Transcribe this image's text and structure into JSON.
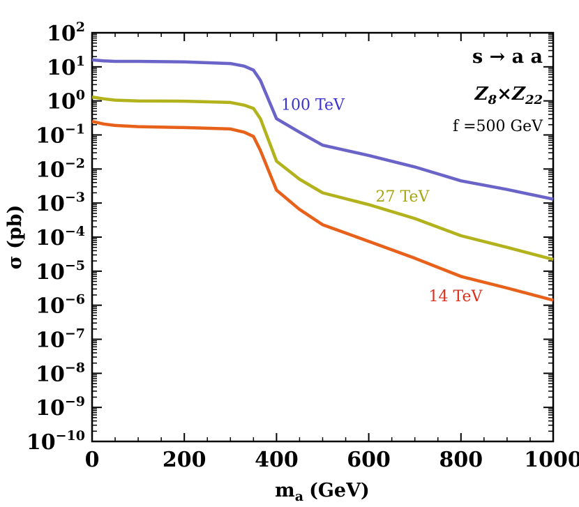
{
  "chart_data": {
    "type": "line",
    "title": "",
    "xlabel": "m",
    "xlabel_sub": "a",
    "xlabel_unit": "(GeV)",
    "ylabel": "σ (pb)",
    "xlim": [
      0,
      1000
    ],
    "ylim_log10": [
      -10,
      2
    ],
    "yscale": "log",
    "x_ticks": [
      0,
      200,
      400,
      600,
      800,
      1000
    ],
    "x_tick_labels": [
      "0",
      "200",
      "400",
      "600",
      "800",
      "1000"
    ],
    "y_ticks": [
      {
        "base": "10",
        "exp": "2"
      },
      {
        "base": "10",
        "exp": "1"
      },
      {
        "base": "10",
        "exp": "0"
      },
      {
        "base": "10",
        "exp": "−1"
      },
      {
        "base": "10",
        "exp": "−2"
      },
      {
        "base": "10",
        "exp": "−3"
      },
      {
        "base": "10",
        "exp": "−4"
      },
      {
        "base": "10",
        "exp": "−5"
      },
      {
        "base": "10",
        "exp": "−6"
      },
      {
        "base": "10",
        "exp": "−7"
      },
      {
        "base": "10",
        "exp": "−8"
      },
      {
        "base": "10",
        "exp": "−9"
      },
      {
        "base": "10",
        "exp": "−10"
      }
    ],
    "grid": false,
    "series": [
      {
        "name": "100 TeV",
        "color": "#6b64c8",
        "label_color": "#3a32d0",
        "points": [
          [
            0,
            16
          ],
          [
            25,
            15
          ],
          [
            50,
            14.5
          ],
          [
            100,
            14.5
          ],
          [
            200,
            14
          ],
          [
            300,
            12.5
          ],
          [
            330,
            10.5
          ],
          [
            350,
            8
          ],
          [
            365,
            4
          ],
          [
            400,
            0.3
          ],
          [
            450,
            0.12
          ],
          [
            500,
            0.05
          ],
          [
            600,
            0.025
          ],
          [
            700,
            0.0115
          ],
          [
            800,
            0.0045
          ],
          [
            900,
            0.0025
          ],
          [
            1000,
            0.0013
          ]
        ]
      },
      {
        "name": "27 TeV",
        "color": "#b2b31c",
        "label_color": "#a5a514",
        "points": [
          [
            0,
            1.3
          ],
          [
            25,
            1.15
          ],
          [
            50,
            1.05
          ],
          [
            100,
            1.0
          ],
          [
            200,
            0.98
          ],
          [
            300,
            0.9
          ],
          [
            330,
            0.75
          ],
          [
            350,
            0.6
          ],
          [
            365,
            0.3
          ],
          [
            400,
            0.017
          ],
          [
            450,
            0.005
          ],
          [
            500,
            0.002
          ],
          [
            600,
            0.0009
          ],
          [
            700,
            0.00035
          ],
          [
            800,
            0.00011
          ],
          [
            900,
            5e-05
          ],
          [
            1000,
            2.2e-05
          ]
        ]
      },
      {
        "name": "14 TeV",
        "color": "#e8611a",
        "label_color": "#d92e1a",
        "points": [
          [
            0,
            0.25
          ],
          [
            25,
            0.21
          ],
          [
            50,
            0.19
          ],
          [
            100,
            0.175
          ],
          [
            200,
            0.165
          ],
          [
            300,
            0.15
          ],
          [
            330,
            0.12
          ],
          [
            350,
            0.09
          ],
          [
            365,
            0.035
          ],
          [
            400,
            0.0024
          ],
          [
            450,
            0.00065
          ],
          [
            500,
            0.00023
          ],
          [
            600,
            7.5e-05
          ],
          [
            700,
            2.4e-05
          ],
          [
            800,
            7e-06
          ],
          [
            900,
            3.2e-06
          ],
          [
            1000,
            1.4e-06
          ]
        ]
      }
    ],
    "series_label_anchors": {
      "100 TeV": {
        "x": 410,
        "y": 0.55
      },
      "27 TeV": {
        "x": 615,
        "y": 0.0011
      },
      "14 TeV": {
        "x": 730,
        "y": 1.3e-06
      }
    },
    "annotations": {
      "process": "s → a a",
      "symmetry_a": "Z",
      "symmetry_a_sub": "8",
      "symmetry_times": "×",
      "symmetry_b": "Z",
      "symmetry_b_sub": "22",
      "param": "f =500 GeV"
    }
  }
}
